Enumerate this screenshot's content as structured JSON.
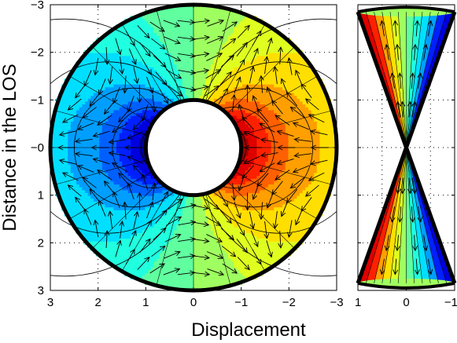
{
  "chart_data": [
    {
      "type": "filled-contour-with-vector-field",
      "panel": "main",
      "title": "",
      "xlabel": "Displacement",
      "ylabel": "Distance in the LOS",
      "xlim": [
        3,
        -3
      ],
      "ylim": [
        -3,
        3
      ],
      "x_axis_reversed": true,
      "y_axis_reversed": true,
      "xticks": [
        3,
        2,
        1,
        0,
        -1,
        -2,
        -3
      ],
      "xtick_labels": [
        "3",
        "2",
        "1",
        "0",
        "−1",
        "−2",
        "−3"
      ],
      "yticks": [
        -3,
        -2,
        -1,
        0,
        1,
        2,
        3
      ],
      "ytick_labels": [
        "−3",
        "−2",
        "−1",
        "−0",
        "1",
        "2",
        "3"
      ],
      "grid": "dotted",
      "annulus": {
        "inner_radius": 1,
        "outer_radius": 3
      },
      "colormap": "jet",
      "color_range": [
        -1,
        1
      ],
      "contour_levels": 16,
      "field": "color = -x / r^2 inside annulus; arrows tangent to dipole field lines"
    },
    {
      "type": "filled-contour-with-vector-field",
      "panel": "side",
      "title": "",
      "xlabel": "",
      "ylabel": "",
      "xlim": [
        1,
        -1
      ],
      "ylim": [
        -3,
        3
      ],
      "x_axis_reversed": true,
      "y_axis_reversed": true,
      "xticks": [
        1,
        0,
        -1
      ],
      "xtick_labels": [
        "1",
        "0",
        "−1"
      ],
      "grid": "dotted",
      "shape": "double cone (hourglass) with apex at 0",
      "colormap": "jet",
      "color_range": [
        -1,
        1
      ]
    }
  ],
  "colors": {
    "frame": "#000000",
    "background": "#ffffff",
    "hole": "#ffffff"
  }
}
